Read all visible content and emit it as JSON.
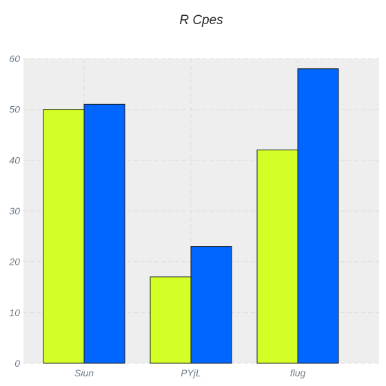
{
  "chart_data": {
    "type": "bar",
    "title": "R Cpes",
    "xlabel": "",
    "ylabel": "",
    "categories": [
      "Siun",
      "PYjL",
      "flug"
    ],
    "series": [
      {
        "values": [
          50,
          17,
          42
        ],
        "color": "#d4ff26"
      },
      {
        "values": [
          51,
          23,
          58
        ],
        "color": "#0066ff"
      }
    ],
    "ylim": [
      0,
      60
    ],
    "yticks": [
      0,
      10,
      20,
      30,
      40,
      50,
      60
    ],
    "grid": true,
    "legend": "none",
    "plot_background": "#eeeeee"
  }
}
